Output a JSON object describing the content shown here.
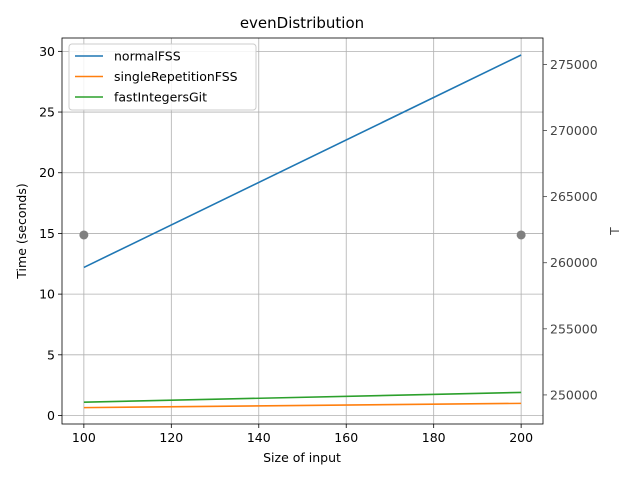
{
  "chart_data": {
    "type": "line",
    "title": "evenDistribution",
    "xlabel": "Size of input",
    "ylabel": "Time (seconds)",
    "y2label": "T",
    "x": [
      100,
      200
    ],
    "xlim": [
      95,
      205
    ],
    "ylim": [
      -0.7,
      31.1
    ],
    "y2lim": [
      247800,
      277000
    ],
    "xticks": [
      100,
      120,
      140,
      160,
      180,
      200
    ],
    "yticks": [
      0,
      5,
      10,
      15,
      20,
      25,
      30
    ],
    "y2ticks": [
      250000,
      255000,
      260000,
      265000,
      270000,
      275000
    ],
    "grid": true,
    "legend_position": "top-left",
    "series": [
      {
        "name": "normalFSS",
        "axis": "left",
        "values": [
          12.2,
          29.7
        ],
        "color": "#1f77b4"
      },
      {
        "name": "singleRepetitionFSS",
        "axis": "left",
        "values": [
          0.65,
          1.0
        ],
        "color": "#ff7f0e"
      },
      {
        "name": "fastIntegersGit",
        "axis": "left",
        "values": [
          1.1,
          1.9
        ],
        "color": "#2ca02c"
      }
    ],
    "secondary_points": {
      "axis": "right",
      "values": [
        262100,
        262100
      ],
      "color": "#808080"
    }
  }
}
